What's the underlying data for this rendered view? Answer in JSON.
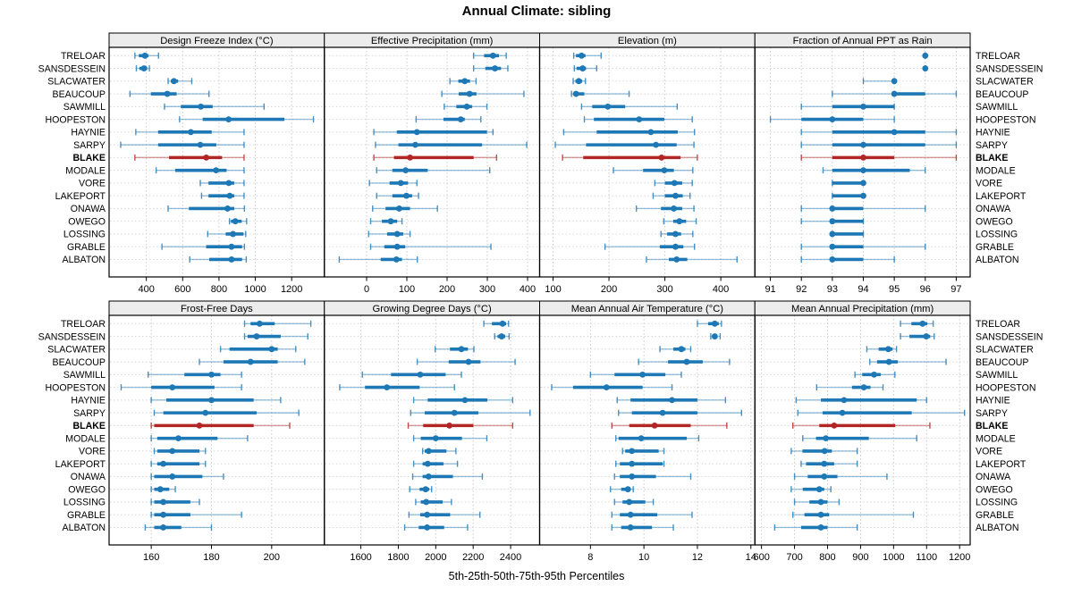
{
  "title": "Annual Climate: sibling",
  "xlabel": "5th-25th-50th-75th-95th Percentiles",
  "colors": {
    "point": "#1d78b5",
    "highlight": "#b22626",
    "strip_bg": "#ececec",
    "grid": "#c9c9c9",
    "row_guide": "#d8d8d8",
    "frame": "#000000"
  },
  "chart_data": {
    "type": "dot-interval-trellis",
    "percentiles": [
      "5th",
      "25th",
      "50th",
      "75th",
      "95th"
    ],
    "sites": [
      "TRELOAR",
      "SANSDESSEIN",
      "SLACWATER",
      "BEAUCOUP",
      "SAWMILL",
      "HOOPESTON",
      "HAYNIE",
      "SARPY",
      "BLAKE",
      "MODALE",
      "VORE",
      "LAKEPORT",
      "ONAWA",
      "OWEGO",
      "LOSSING",
      "GRABLE",
      "ALBATON"
    ],
    "highlight_site": "BLAKE",
    "panels": [
      {
        "title": "Design Freeze Index (°C)",
        "grid_row": 0,
        "grid_col": 0,
        "xlim": [
          195,
          1380
        ],
        "ticks": [
          400,
          600,
          800,
          1000,
          1200
        ],
        "values": [
          [
            337,
            359,
            392,
            412,
            467
          ],
          [
            345,
            362,
            387,
            405,
            417
          ],
          [
            520,
            535,
            552,
            575,
            650
          ],
          [
            310,
            425,
            515,
            567,
            745
          ],
          [
            500,
            590,
            700,
            765,
            1048
          ],
          [
            583,
            710,
            853,
            1160,
            1320
          ],
          [
            342,
            465,
            645,
            760,
            938
          ],
          [
            259,
            465,
            697,
            785,
            938
          ],
          [
            337,
            525,
            730,
            817,
            938
          ],
          [
            454,
            559,
            784,
            842,
            938
          ],
          [
            697,
            742,
            854,
            884,
            938
          ],
          [
            704,
            742,
            859,
            884,
            938
          ],
          [
            520,
            634,
            847,
            884,
            940
          ],
          [
            858,
            866,
            890,
            925,
            952
          ],
          [
            738,
            837,
            877,
            935,
            947
          ],
          [
            486,
            729,
            869,
            927,
            940
          ],
          [
            639,
            746,
            869,
            927,
            950
          ]
        ]
      },
      {
        "title": "Effective Precipitation (mm)",
        "grid_row": 0,
        "grid_col": 1,
        "xlim": [
          -105,
          430
        ],
        "ticks": [
          0,
          100,
          200,
          300,
          400
        ],
        "values": [
          [
            266,
            292,
            314,
            329,
            347
          ],
          [
            266,
            295,
            319,
            334,
            351
          ],
          [
            207,
            228,
            244,
            257,
            272
          ],
          [
            187,
            229,
            256,
            273,
            391
          ],
          [
            193,
            223,
            249,
            262,
            299
          ],
          [
            123,
            191,
            234,
            244,
            284
          ],
          [
            18,
            75,
            125,
            299,
            314
          ],
          [
            22,
            79,
            121,
            287,
            398
          ],
          [
            18,
            68,
            108,
            266,
            323
          ],
          [
            25,
            64,
            97,
            152,
            306
          ],
          [
            7,
            57,
            85,
            103,
            125
          ],
          [
            25,
            64,
            99,
            113,
            129
          ],
          [
            15,
            47,
            81,
            108,
            176
          ],
          [
            10,
            38,
            60,
            76,
            88
          ],
          [
            5,
            51,
            76,
            91,
            108
          ],
          [
            10,
            44,
            76,
            96,
            309
          ],
          [
            -68,
            35,
            74,
            88,
            126
          ]
        ]
      },
      {
        "title": "Elevation (m)",
        "grid_row": 0,
        "grid_col": 2,
        "xlim": [
          76,
          461
        ],
        "ticks": [
          100,
          200,
          300,
          400
        ],
        "values": [
          [
            137,
            141,
            151,
            158,
            186
          ],
          [
            138,
            142,
            153,
            159,
            178
          ],
          [
            136,
            140,
            146,
            152,
            158
          ],
          [
            133,
            137,
            141,
            156,
            236
          ],
          [
            151,
            170,
            198,
            229,
            322
          ],
          [
            156,
            173,
            254,
            299,
            349
          ],
          [
            119,
            178,
            275,
            323,
            353
          ],
          [
            104,
            159,
            284,
            321,
            352
          ],
          [
            117,
            154,
            294,
            328,
            358
          ],
          [
            208,
            261,
            299,
            316,
            350
          ],
          [
            282,
            300,
            317,
            331,
            349
          ],
          [
            279,
            300,
            319,
            332,
            345
          ],
          [
            249,
            293,
            316,
            331,
            352
          ],
          [
            298,
            315,
            326,
            338,
            356
          ],
          [
            293,
            304,
            319,
            329,
            350
          ],
          [
            193,
            291,
            319,
            333,
            353
          ],
          [
            267,
            307,
            321,
            340,
            429
          ]
        ]
      },
      {
        "title": "Fraction of Annual PPT as Rain",
        "grid_row": 0,
        "grid_col": 3,
        "xlim": [
          90.5,
          97.45
        ],
        "ticks": [
          91,
          92,
          93,
          94,
          95,
          96,
          97
        ],
        "values": [
          [
            96,
            96,
            96,
            96,
            96
          ],
          [
            96,
            96,
            96,
            96,
            96
          ],
          [
            94,
            95,
            95,
            95,
            95
          ],
          [
            93,
            95,
            95,
            96,
            97
          ],
          [
            92,
            93,
            94,
            95,
            95
          ],
          [
            91,
            92,
            93,
            94,
            95
          ],
          [
            92,
            93,
            95,
            96,
            97
          ],
          [
            92,
            93,
            94,
            96,
            97
          ],
          [
            92,
            93,
            94,
            95,
            97
          ],
          [
            92.7,
            93,
            94,
            95.5,
            96
          ],
          [
            93,
            93,
            94,
            94,
            94
          ],
          [
            93,
            93,
            94,
            94,
            94
          ],
          [
            92,
            93,
            93,
            94,
            96
          ],
          [
            92,
            93,
            93,
            94,
            94
          ],
          [
            93,
            93,
            93,
            94,
            94
          ],
          [
            92,
            93,
            93,
            94,
            96
          ],
          [
            92,
            93,
            93,
            94,
            95
          ]
        ]
      },
      {
        "title": "Frost-Free Days",
        "grid_row": 1,
        "grid_col": 0,
        "xlim": [
          146,
          217.5
        ],
        "ticks": [
          160,
          180,
          200
        ],
        "values": [
          [
            191,
            193,
            196,
            201,
            213
          ],
          [
            191,
            192,
            195,
            203,
            212
          ],
          [
            183,
            186,
            200,
            202,
            208
          ],
          [
            176,
            184,
            193,
            202,
            211
          ],
          [
            159,
            171,
            180,
            183,
            190
          ],
          [
            150,
            160,
            167,
            181,
            190
          ],
          [
            160,
            165,
            180,
            194,
            203
          ],
          [
            161,
            164,
            178,
            195,
            209
          ],
          [
            160,
            161,
            176,
            194,
            206
          ],
          [
            160,
            162,
            169,
            182,
            192
          ],
          [
            161,
            162,
            167,
            176,
            178
          ],
          [
            160,
            162,
            164,
            176,
            178
          ],
          [
            160,
            161,
            167,
            177,
            184
          ],
          [
            160,
            161,
            163,
            166,
            168
          ],
          [
            160,
            161,
            164,
            173,
            176
          ],
          [
            160,
            161,
            164,
            173,
            190
          ],
          [
            158,
            161,
            164,
            170,
            180
          ]
        ]
      },
      {
        "title": "Growing Degree Days (°C)",
        "grid_row": 1,
        "grid_col": 1,
        "xlim": [
          1405,
          2555
        ],
        "ticks": [
          1600,
          1800,
          2000,
          2200,
          2400
        ],
        "values": [
          [
            2257,
            2300,
            2357,
            2376,
            2389
          ],
          [
            2315,
            2330,
            2352,
            2371,
            2392
          ],
          [
            1997,
            2076,
            2137,
            2172,
            2204
          ],
          [
            1901,
            2069,
            2175,
            2239,
            2424
          ],
          [
            1608,
            1761,
            1917,
            2053,
            2137
          ],
          [
            1487,
            1622,
            1739,
            1914,
            2100
          ],
          [
            1882,
            1957,
            2156,
            2276,
            2411
          ],
          [
            1866,
            1941,
            2100,
            2228,
            2504
          ],
          [
            1853,
            1933,
            2073,
            2201,
            2411
          ],
          [
            1882,
            1920,
            2000,
            2140,
            2273
          ],
          [
            1930,
            1941,
            1962,
            2057,
            2108
          ],
          [
            1882,
            1930,
            1957,
            2041,
            2116
          ],
          [
            1877,
            1930,
            1962,
            2092,
            2249
          ],
          [
            1861,
            1914,
            1946,
            1965,
            1978
          ],
          [
            1893,
            1920,
            1949,
            2037,
            2084
          ],
          [
            1857,
            1917,
            1954,
            2077,
            2236
          ],
          [
            1834,
            1909,
            1954,
            2045,
            2170
          ]
        ]
      },
      {
        "title": "Mean Annual Air Temperature (°C)",
        "grid_row": 1,
        "grid_col": 2,
        "xlim": [
          6.1,
          14.15
        ],
        "ticks": [
          8,
          10,
          12,
          14
        ],
        "values": [
          [
            12.0,
            12.4,
            12.65,
            12.8,
            12.9
          ],
          [
            12.5,
            12.55,
            12.65,
            12.75,
            12.85
          ],
          [
            10.6,
            11.1,
            11.4,
            11.55,
            11.75
          ],
          [
            9.8,
            10.9,
            11.6,
            12.2,
            13.2
          ],
          [
            8.0,
            8.9,
            9.95,
            10.8,
            11.4
          ],
          [
            6.55,
            7.35,
            8.6,
            9.95,
            11.05
          ],
          [
            9.0,
            9.5,
            11.05,
            12.0,
            13.05
          ],
          [
            9.05,
            9.55,
            10.7,
            12.0,
            13.65
          ],
          [
            8.8,
            9.45,
            10.4,
            11.75,
            13.1
          ],
          [
            8.95,
            9.05,
            9.9,
            11.6,
            12.05
          ],
          [
            9.2,
            9.3,
            9.55,
            10.55,
            10.75
          ],
          [
            8.95,
            9.1,
            9.55,
            10.7,
            10.75
          ],
          [
            8.9,
            9.1,
            9.55,
            10.45,
            11.75
          ],
          [
            8.75,
            9.15,
            9.4,
            9.5,
            9.6
          ],
          [
            8.9,
            9.2,
            9.45,
            10.05,
            10.35
          ],
          [
            8.8,
            9.1,
            9.5,
            10.5,
            11.8
          ],
          [
            8.8,
            9.15,
            9.5,
            10.3,
            11.1
          ]
        ]
      },
      {
        "title": "Mean Annual Precipitation (mm)",
        "grid_row": 1,
        "grid_col": 3,
        "xlim": [
          580,
          1232
        ],
        "ticks": [
          600,
          700,
          800,
          900,
          1000,
          1100,
          1200
        ],
        "values": [
          [
            1021,
            1054,
            1088,
            1102,
            1120
          ],
          [
            1021,
            1048,
            1099,
            1111,
            1123
          ],
          [
            919,
            955,
            984,
            997,
            1009
          ],
          [
            928,
            950,
            986,
            1013,
            1159
          ],
          [
            883,
            905,
            941,
            961,
            1004
          ],
          [
            767,
            874,
            910,
            930,
            968
          ],
          [
            705,
            780,
            850,
            1070,
            1100
          ],
          [
            710,
            785,
            845,
            1055,
            1215
          ],
          [
            695,
            775,
            820,
            1005,
            1110
          ],
          [
            725,
            765,
            795,
            925,
            1070
          ],
          [
            690,
            724,
            791,
            813,
            890
          ],
          [
            720,
            735,
            790,
            820,
            890
          ],
          [
            700,
            740,
            790,
            830,
            980
          ],
          [
            690,
            725,
            775,
            790,
            810
          ],
          [
            700,
            745,
            780,
            800,
            835
          ],
          [
            695,
            730,
            780,
            805,
            1060
          ],
          [
            640,
            720,
            780,
            800,
            890
          ]
        ]
      }
    ]
  }
}
